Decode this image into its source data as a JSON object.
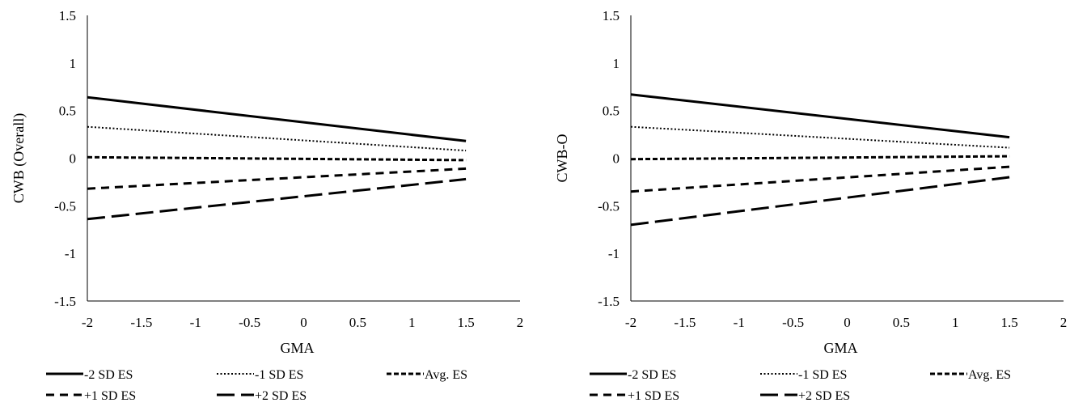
{
  "chart_data": [
    {
      "type": "line",
      "title": "",
      "xlabel": "GMA",
      "ylabel": "CWB (Overall)",
      "xlim": [
        -2,
        2
      ],
      "ylim": [
        -1.5,
        1.5
      ],
      "x_ticks": [
        "-2",
        "-1.5",
        "-1",
        "-0.5",
        "0",
        "0.5",
        "1",
        "1.5",
        "2"
      ],
      "y_ticks": [
        "1.5",
        "1",
        "0.5",
        "0",
        "-0.5",
        "-1",
        "-1.5"
      ],
      "grid": false,
      "legend_position": "bottom",
      "series": [
        {
          "name": "-2 SD ES",
          "dash": "solid",
          "x": [
            -2,
            1.5
          ],
          "y": [
            0.64,
            0.18
          ]
        },
        {
          "name": "-1 SD ES",
          "dash": "dotted",
          "x": [
            -2,
            1.5
          ],
          "y": [
            0.33,
            0.08
          ]
        },
        {
          "name": "Avg. ES",
          "dash": "short-dash",
          "x": [
            -2,
            1.5
          ],
          "y": [
            0.01,
            -0.02
          ]
        },
        {
          "name": "+1 SD ES",
          "dash": "dash",
          "x": [
            -2,
            1.5
          ],
          "y": [
            -0.32,
            -0.11
          ]
        },
        {
          "name": "+2 SD ES",
          "dash": "long-dash",
          "x": [
            -2,
            1.5
          ],
          "y": [
            -0.64,
            -0.22
          ]
        }
      ]
    },
    {
      "type": "line",
      "title": "",
      "xlabel": "GMA",
      "ylabel": "CWB-O",
      "xlim": [
        -2,
        2
      ],
      "ylim": [
        -1.5,
        1.5
      ],
      "x_ticks": [
        "-2",
        "-1.5",
        "-1",
        "-0.5",
        "0",
        "0.5",
        "1",
        "1.5",
        "2"
      ],
      "y_ticks": [
        "1.5",
        "1",
        "0.5",
        "0",
        "-0.5",
        "-1",
        "-1.5"
      ],
      "grid": false,
      "legend_position": "bottom",
      "series": [
        {
          "name": "-2 SD ES",
          "dash": "solid",
          "x": [
            -2,
            1.5
          ],
          "y": [
            0.67,
            0.22
          ]
        },
        {
          "name": "-1 SD ES",
          "dash": "dotted",
          "x": [
            -2,
            1.5
          ],
          "y": [
            0.33,
            0.11
          ]
        },
        {
          "name": "Avg. ES",
          "dash": "short-dash",
          "x": [
            -2,
            1.5
          ],
          "y": [
            -0.01,
            0.02
          ]
        },
        {
          "name": "+1 SD ES",
          "dash": "dash",
          "x": [
            -2,
            1.5
          ],
          "y": [
            -0.35,
            -0.09
          ]
        },
        {
          "name": "+2 SD ES",
          "dash": "long-dash",
          "x": [
            -2,
            1.5
          ],
          "y": [
            -0.7,
            -0.2
          ]
        }
      ]
    }
  ]
}
